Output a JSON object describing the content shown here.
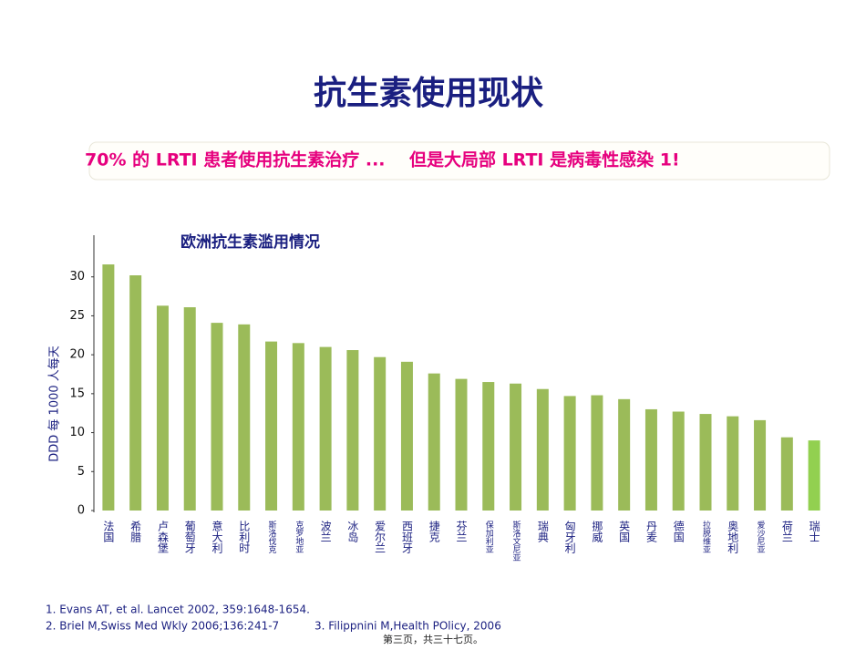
{
  "slide": {
    "title": "抗生素使用现状",
    "banner": "70% 的 LRTI 患者使用抗生素治疗 ...    但是大局部 LRTI 是病毒性感染 1!",
    "footnotes": [
      "1.   Evans AT, et al. Lancet 2002, 359:1648-1654.",
      "2.   Briel M,Swiss Med Wkly 2006;136:241-7",
      "3. Filippnini M,Health POlicy, 2006"
    ],
    "page": "第三页，共三十七页。"
  },
  "chart_data": {
    "type": "bar",
    "title": "欧洲抗生素滥用情况",
    "y_label": "DDD 每 1000 人每天",
    "categories": [
      "法国",
      "希腊",
      "卢森堡",
      "葡萄牙",
      "意大利",
      "比利时",
      "斯洛伐克",
      "克罗地亚",
      "波兰",
      "冰岛",
      "爱尔兰",
      "西班牙",
      "捷克",
      "芬兰",
      "保加利亚",
      "斯洛文尼亚",
      "瑞典",
      "匈牙利",
      "挪威",
      "英国",
      "丹麦",
      "德国",
      "拉脱维亚",
      "奥地利",
      "爱沙尼亚",
      "荷兰",
      "瑞士"
    ],
    "values": [
      31.6,
      30.2,
      26.3,
      26.1,
      24.1,
      23.9,
      21.7,
      21.5,
      21.0,
      20.6,
      19.7,
      19.1,
      17.6,
      16.9,
      16.5,
      16.3,
      15.6,
      14.7,
      14.8,
      14.3,
      13.0,
      12.7,
      12.4,
      12.1,
      11.6,
      9.4,
      9.0
    ],
    "colors": [
      "#9bbb59",
      "#9bbb59",
      "#9bbb59",
      "#9bbb59",
      "#9bbb59",
      "#9bbb59",
      "#9bbb59",
      "#9bbb59",
      "#9bbb59",
      "#9bbb59",
      "#9bbb59",
      "#9bbb59",
      "#9bbb59",
      "#9bbb59",
      "#9bbb59",
      "#9bbb59",
      "#9bbb59",
      "#9bbb59",
      "#9bbb59",
      "#9bbb59",
      "#9bbb59",
      "#9bbb59",
      "#9bbb59",
      "#9bbb59",
      "#9bbb59",
      "#9bbb59",
      "#92d050"
    ],
    "ylim": [
      0,
      35
    ],
    "yticks": [
      0,
      5,
      10,
      15,
      20,
      25,
      30
    ],
    "grid": false
  }
}
